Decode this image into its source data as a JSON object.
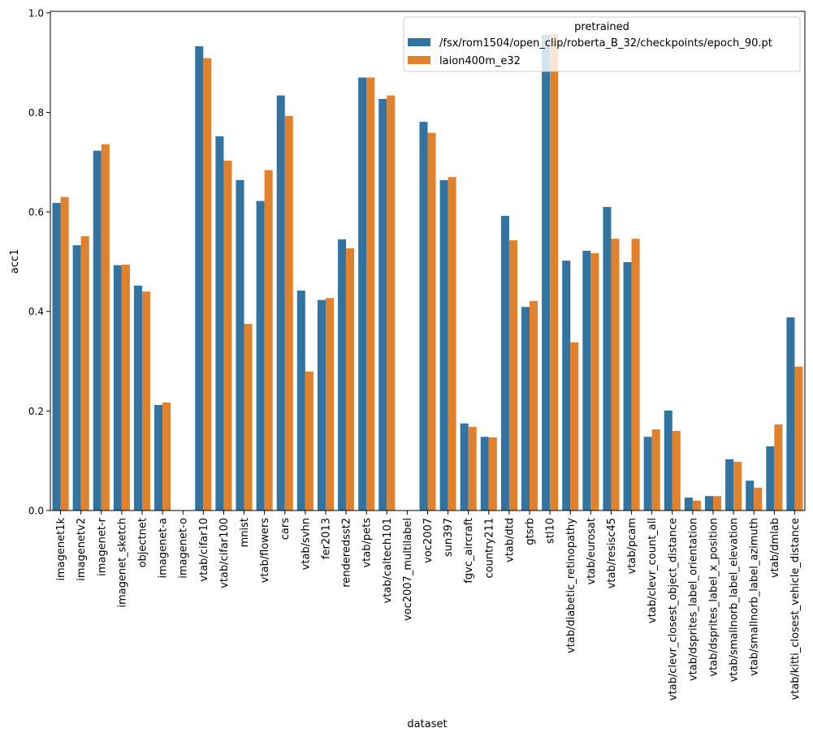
{
  "chart_data": {
    "type": "bar",
    "xlabel": "dataset",
    "ylabel": "acc1",
    "ylim": [
      0,
      1.003
    ],
    "yticks": [
      "0.0",
      "0.2",
      "0.4",
      "0.6",
      "0.8",
      "1.0"
    ],
    "legend": {
      "title": "pretrained",
      "placement": "top-right"
    },
    "categories": [
      "imagenet1k",
      "imagenetv2",
      "imagenet-r",
      "imagenet_sketch",
      "objectnet",
      "imagenet-a",
      "imagenet-o",
      "vtab/cifar10",
      "vtab/cifar100",
      "mnist",
      "vtab/flowers",
      "cars",
      "vtab/svhn",
      "fer2013",
      "renderedsst2",
      "vtab/pets",
      "vtab/caltech101",
      "voc2007_multilabel",
      "voc2007",
      "sun397",
      "fgvc_aircraft",
      "country211",
      "vtab/dtd",
      "gtsrb",
      "stl10",
      "vtab/diabetic_retinopathy",
      "vtab/eurosat",
      "vtab/resisc45",
      "vtab/pcam",
      "vtab/clevr_count_all",
      "vtab/clevr_closest_object_distance",
      "vtab/dsprites_label_orientation",
      "vtab/dsprites_label_x_position",
      "vtab/smallnorb_label_elevation",
      "vtab/smallnorb_label_azimuth",
      "vtab/dmlab",
      "vtab/kitti_closest_vehicle_distance"
    ],
    "series": [
      {
        "name": "/fsx/rom1504/open_clip/roberta_B_32/checkpoints/epoch_90.pt",
        "color": "#3274a1",
        "values": [
          0.618,
          0.533,
          0.723,
          0.493,
          0.452,
          0.212,
          0,
          0.933,
          0.752,
          0.664,
          0.622,
          0.834,
          0.442,
          0.423,
          0.545,
          0.87,
          0.827,
          0,
          0.781,
          0.664,
          0.175,
          0.148,
          0.592,
          0.409,
          0.956,
          0.502,
          0.522,
          0.61,
          0.499,
          0.148,
          0.201,
          0.026,
          0.029,
          0.103,
          0.06,
          0.129,
          0.388
        ]
      },
      {
        "name": "laion400m_e32",
        "color": "#e1812c",
        "values": [
          0.63,
          0.551,
          0.736,
          0.494,
          0.44,
          0.217,
          0,
          0.909,
          0.703,
          0.375,
          0.684,
          0.793,
          0.279,
          0.427,
          0.527,
          0.87,
          0.834,
          0,
          0.759,
          0.67,
          0.168,
          0.147,
          0.543,
          0.421,
          0.958,
          0.338,
          0.517,
          0.546,
          0.546,
          0.163,
          0.16,
          0.02,
          0.029,
          0.098,
          0.046,
          0.173,
          0.289
        ]
      }
    ]
  }
}
